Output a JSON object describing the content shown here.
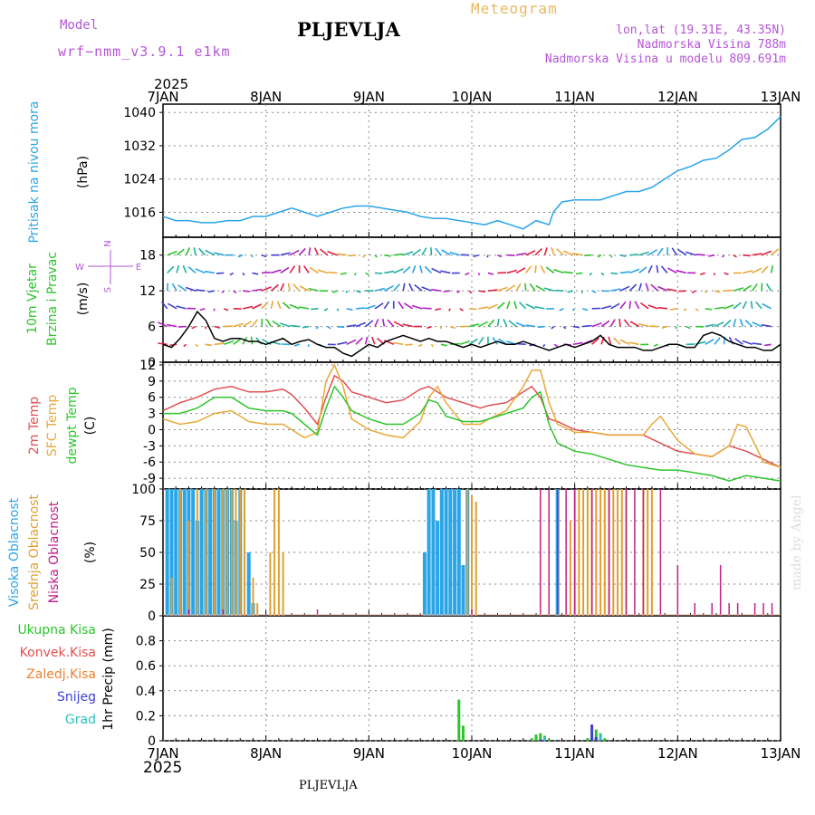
{
  "header": {
    "title": "PLJEVLJA",
    "model_label": "Model",
    "model_name": "wrf−nmm_v3.9.1  e1km",
    "chart_name": "Meteogram",
    "coords": "lon,lat (19.31E, 43.35N)",
    "altitude": "Nadmorska Visina 788m",
    "model_altitude": "Nadmorska Visina u modelu 809.691m",
    "year": "2025",
    "footer": "PLJEVLJA",
    "credit": "made by Angel"
  },
  "colors": {
    "pressure": "#2aa5e6",
    "temp": "#e05050",
    "sfc": "#e8a838",
    "dew": "#2ec42e",
    "high_cloud": "#2aa5e6",
    "mid_cloud": "#e0a030",
    "low_cloud": "#c0208a",
    "snow": "#4040d0",
    "grad": "#30c0c0",
    "total_precip": "#2ec42e",
    "conv_precip": "#e05050",
    "frozen_precip": "#f08030",
    "axis_label_purple": "#b455d6"
  },
  "chart_data": [
    {
      "type": "line",
      "title": "Pritisak na nivou mora",
      "ylabel": "(hPa)",
      "x_unit": "hours since 7JAN 00:00",
      "x_ticks": [
        "7JAN",
        "8JAN",
        "9JAN",
        "10JAN",
        "11JAN",
        "12JAN",
        "13JAN"
      ],
      "ylim": [
        1010,
        1042
      ],
      "yticks": [
        1016,
        1024,
        1032,
        1040
      ],
      "grid": true,
      "series": [
        {
          "name": "Pritisak na nivou mora",
          "x": [
            0,
            3,
            6,
            9,
            12,
            15,
            18,
            21,
            24,
            27,
            30,
            33,
            36,
            39,
            42,
            45,
            48,
            51,
            54,
            57,
            60,
            63,
            66,
            69,
            72,
            75,
            78,
            81,
            84,
            87,
            90,
            91,
            93,
            96,
            99,
            102,
            105,
            108,
            111,
            114,
            117,
            120,
            123,
            126,
            129,
            132,
            135,
            138,
            141,
            144
          ],
          "values": [
            1015,
            1014,
            1014,
            1013.5,
            1013.5,
            1014,
            1014,
            1015,
            1015,
            1016,
            1017,
            1016,
            1015,
            1016,
            1017,
            1017.5,
            1017.5,
            1017,
            1016.5,
            1016,
            1015,
            1014.5,
            1014.5,
            1014,
            1013.5,
            1013,
            1014,
            1013,
            1012,
            1014,
            1013,
            1016,
            1018.5,
            1019,
            1019,
            1019,
            1020,
            1021,
            1021,
            1022,
            1024,
            1026,
            1027,
            1028.5,
            1029,
            1031,
            1033.5,
            1034,
            1036,
            1039
          ]
        }
      ]
    },
    {
      "type": "line",
      "title": "10m Vjetar Brzina i Pravac",
      "ylabel": "(m/s)",
      "ylim": [
        0,
        21
      ],
      "yticks": [
        0,
        6,
        12,
        18
      ],
      "grid": true,
      "series": [
        {
          "name": "10m Vjetar Brzina i Pravac",
          "x": [
            0,
            2,
            4,
            6,
            8,
            10,
            12,
            14,
            16,
            18,
            20,
            22,
            24,
            26,
            28,
            30,
            32,
            34,
            36,
            38,
            40,
            42,
            44,
            46,
            48,
            50,
            52,
            54,
            56,
            58,
            60,
            62,
            64,
            66,
            68,
            70,
            72,
            74,
            76,
            78,
            80,
            82,
            84,
            86,
            88,
            90,
            92,
            94,
            96,
            98,
            100,
            102,
            104,
            106,
            108,
            110,
            112,
            114,
            116,
            118,
            120,
            122,
            124,
            126,
            128,
            130,
            132,
            134,
            136,
            138,
            140,
            142,
            144
          ],
          "values": [
            3,
            2.5,
            4,
            6,
            8.5,
            7,
            4,
            3.5,
            4,
            4,
            3.5,
            3.5,
            3,
            3.5,
            4,
            3,
            3.5,
            3.8,
            3,
            2.5,
            2.5,
            1.5,
            1,
            2,
            3,
            2.5,
            3.5,
            4,
            4.5,
            4,
            3.5,
            4,
            3.5,
            3.5,
            3,
            2.5,
            3,
            2.5,
            3,
            3.5,
            3,
            3,
            3.5,
            3,
            2.5,
            2,
            2.5,
            3,
            2.5,
            3,
            3.5,
            4.5,
            3,
            2.5,
            2.5,
            2.5,
            2,
            2,
            2.5,
            3,
            3,
            2.5,
            2.5,
            4.5,
            5,
            4.5,
            3.5,
            3,
            2.5,
            2.5,
            2,
            2,
            3
          ]
        }
      ],
      "axis_annotations": [
        "N",
        "E",
        "S",
        "W"
      ]
    },
    {
      "type": "line",
      "title": "2m Temp / SFC Temp / dewpt Temp",
      "ylabel": "(C)",
      "ylim": [
        -11,
        12.5
      ],
      "yticks": [
        -9,
        -6,
        -3,
        0,
        3,
        6,
        9,
        12
      ],
      "grid": true,
      "series": [
        {
          "name": "2m Temp",
          "x": [
            0,
            4,
            8,
            12,
            16,
            20,
            24,
            28,
            30,
            33,
            36,
            38,
            40,
            42,
            44,
            48,
            52,
            56,
            60,
            62,
            64,
            66,
            70,
            74,
            76,
            80,
            84,
            86,
            88,
            90,
            92,
            96,
            100,
            104,
            108,
            112,
            116,
            120,
            124,
            128,
            132,
            136,
            140,
            144
          ],
          "values": [
            3.5,
            5,
            6,
            7.5,
            8,
            7,
            7,
            7.5,
            6.5,
            4,
            1,
            6,
            10,
            9,
            7,
            6,
            5,
            5.5,
            7.5,
            8,
            7,
            6,
            5,
            4,
            4.5,
            5,
            7,
            8,
            6,
            2,
            1.5,
            0,
            -0.5,
            -1,
            -1,
            -1,
            -2.5,
            -4,
            -4.5,
            -5,
            -3,
            -4,
            -5.5,
            -7
          ]
        },
        {
          "name": "SFC Temp",
          "x": [
            0,
            4,
            8,
            12,
            16,
            20,
            24,
            28,
            30,
            33,
            36,
            38,
            40,
            42,
            44,
            48,
            52,
            56,
            60,
            62,
            64,
            66,
            70,
            74,
            76,
            80,
            84,
            86,
            88,
            90,
            92,
            96,
            100,
            104,
            108,
            112,
            114,
            116,
            120,
            124,
            128,
            132,
            134,
            136,
            140,
            144
          ],
          "values": [
            2,
            1,
            1.5,
            3,
            3.5,
            1.5,
            1,
            1,
            0,
            -1.5,
            -0.5,
            9,
            12,
            8,
            2,
            0,
            -1,
            -1.5,
            1.5,
            6,
            8,
            5,
            1,
            1,
            2,
            3.5,
            8,
            11,
            11,
            5,
            1,
            -0.5,
            -0.5,
            -1,
            -1,
            -1,
            1,
            2.5,
            -2,
            -4.5,
            -5,
            -3,
            1,
            0.5,
            -6,
            -7
          ]
        },
        {
          "name": "dewpt Temp",
          "x": [
            0,
            4,
            8,
            12,
            16,
            20,
            24,
            28,
            30,
            33,
            36,
            38,
            40,
            42,
            44,
            48,
            52,
            56,
            60,
            62,
            64,
            66,
            70,
            74,
            76,
            80,
            84,
            86,
            88,
            90,
            92,
            96,
            100,
            104,
            108,
            112,
            116,
            120,
            124,
            128,
            132,
            136,
            140,
            144
          ],
          "values": [
            3,
            3,
            4,
            6,
            6,
            4,
            3.5,
            3.5,
            3,
            1,
            -1,
            4,
            8,
            6,
            3.5,
            2,
            1,
            1,
            3,
            5.5,
            5,
            2.5,
            1.5,
            1.5,
            2,
            3,
            4,
            6,
            7,
            1,
            -2.5,
            -4,
            -4.5,
            -5.5,
            -6.5,
            -7,
            -7.5,
            -7.5,
            -8,
            -8.5,
            -9.5,
            -8.5,
            -9,
            -9.5
          ]
        }
      ]
    },
    {
      "type": "bar",
      "title": "Visoka Oblacnost / Srednja Oblacnost / Niska Oblacnost",
      "ylabel": "(%)",
      "ylim": [
        0,
        100
      ],
      "yticks": [
        0,
        25,
        50,
        75,
        100
      ],
      "grid": true,
      "series": [
        {
          "name": "Visoka Oblacnost",
          "x": [
            1,
            2,
            3,
            4,
            5,
            6,
            7,
            8,
            9,
            10,
            11,
            12,
            13,
            14,
            15,
            16,
            17,
            18,
            20,
            21,
            61,
            62,
            63,
            64,
            65,
            66,
            67,
            68,
            69,
            70,
            71,
            92
          ],
          "values": [
            100,
            100,
            100,
            100,
            100,
            100,
            100,
            75,
            100,
            100,
            100,
            100,
            100,
            100,
            100,
            100,
            75,
            100,
            50,
            10,
            50,
            100,
            100,
            75,
            100,
            100,
            100,
            100,
            100,
            40,
            100,
            100
          ]
        },
        {
          "name": "Srednja Oblacnost",
          "x": [
            2,
            4,
            6,
            8,
            10,
            12,
            14,
            15,
            16,
            17,
            18,
            19,
            21,
            22,
            25,
            26,
            27,
            28,
            71,
            72,
            73,
            95,
            96,
            97,
            98,
            99,
            100,
            101,
            102,
            103,
            104,
            105,
            106,
            107,
            108,
            112,
            113,
            114
          ],
          "values": [
            30,
            100,
            75,
            100,
            100,
            100,
            100,
            100,
            100,
            100,
            100,
            100,
            30,
            10,
            50,
            100,
            100,
            50,
            100,
            95,
            90,
            75,
            100,
            100,
            100,
            100,
            100,
            100,
            100,
            100,
            100,
            100,
            100,
            100,
            100,
            100,
            100,
            100
          ]
        },
        {
          "name": "Niska Oblacnost",
          "x": [
            6,
            14,
            36,
            72,
            88,
            90,
            92,
            94,
            96,
            100,
            104,
            108,
            110,
            112,
            116,
            120,
            124,
            128,
            130,
            132,
            134,
            138,
            140,
            142
          ],
          "values": [
            5,
            5,
            5,
            5,
            100,
            100,
            100,
            100,
            100,
            100,
            100,
            100,
            100,
            100,
            100,
            40,
            10,
            10,
            40,
            10,
            10,
            10,
            10,
            10
          ]
        }
      ]
    },
    {
      "type": "bar",
      "title": "Ukupna Kisa / Konvek.Kisa / Zaledj.Kisa / Snijeg / Grad",
      "ylabel": "1hr Precip (mm)",
      "ylim": [
        0,
        1.0
      ],
      "yticks": [
        0,
        0.2,
        0.4,
        0.6,
        0.8
      ],
      "grid": true,
      "series": [
        {
          "name": "Ukupna Kisa",
          "x": [
            69,
            70,
            86,
            87,
            88,
            89,
            90,
            99,
            100,
            101,
            102,
            103
          ],
          "values": [
            0.33,
            0.12,
            0.02,
            0.05,
            0.06,
            0.04,
            0.01,
            0.02,
            0.05,
            0.09,
            0.06,
            0.02
          ]
        },
        {
          "name": "Konvek.Kisa",
          "x": [
            69
          ],
          "values": [
            0.0
          ]
        },
        {
          "name": "Zaledj.Kisa",
          "x": [
            87
          ],
          "values": [
            0.0
          ]
        },
        {
          "name": "Snijeg",
          "x": [
            88,
            100,
            101
          ],
          "values": [
            0.01,
            0.13,
            0.03
          ]
        },
        {
          "name": "Grad",
          "x": [
            89,
            102
          ],
          "values": [
            0.03,
            0.05
          ]
        }
      ]
    }
  ],
  "labels": {
    "p1": [
      "Pritisak na nivou mora"
    ],
    "p1_unit": "(hPa)",
    "p2": [
      "10m Vjetar",
      "Brzina i Pravac"
    ],
    "p2_unit": "(m/s)",
    "p3": [
      "2m Temp",
      "SFC Temp",
      "dewpt Temp"
    ],
    "p3_unit": "(C)",
    "p4": [
      "Visoka Oblacnost",
      "Srednja Oblacnost",
      "Niska Oblacnost"
    ],
    "p4_unit": "(%)",
    "p5": [
      "Ukupna Kisa",
      "Konvek.Kisa",
      "Zaledj.Kisa",
      "Snijeg",
      "Grad"
    ],
    "p5_unit": "1hr Precip (mm)",
    "compass": {
      "n": "N",
      "e": "E",
      "s": "S",
      "w": "W"
    }
  }
}
